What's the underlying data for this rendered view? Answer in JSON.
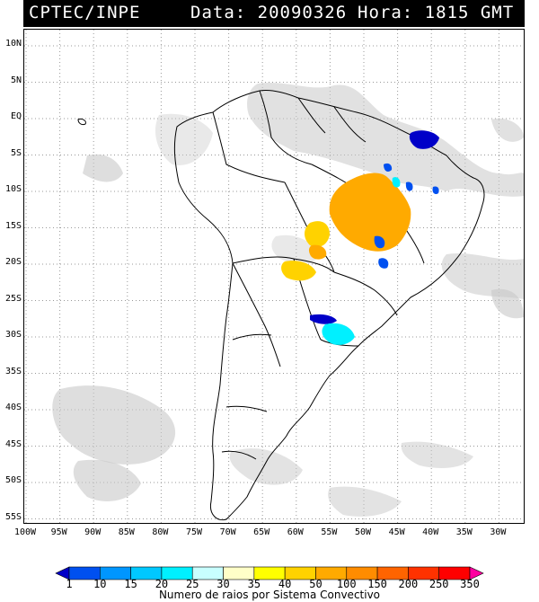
{
  "header": {
    "source": "CPTEC/INPE",
    "date_text": "Data: 20090326",
    "time_text": "Hora: 1815 GMT"
  },
  "map": {
    "lat_labels": [
      "10N",
      "5N",
      "EQ",
      "5S",
      "10S",
      "15S",
      "20S",
      "25S",
      "30S",
      "35S",
      "40S",
      "45S",
      "50S",
      "55S"
    ],
    "lon_labels": [
      "100W",
      "95W",
      "90W",
      "85W",
      "80W",
      "75W",
      "70W",
      "65W",
      "60W",
      "55W",
      "50W",
      "45W",
      "40W",
      "35W",
      "30W"
    ],
    "grid": true,
    "lat_range": [
      -56,
      12
    ],
    "lon_range": [
      -100,
      -27
    ]
  },
  "colorbar": {
    "labels": [
      "1",
      "10",
      "15",
      "20",
      "25",
      "30",
      "35",
      "40",
      "50",
      "100",
      "150",
      "200",
      "250",
      "350"
    ],
    "colors": [
      "#0000c8",
      "#0050f0",
      "#0096ff",
      "#00c8ff",
      "#00f0ff",
      "#c8ffff",
      "#ffffc8",
      "#ffff00",
      "#ffd200",
      "#ffaa00",
      "#ff8c00",
      "#ff6400",
      "#ff3200",
      "#ff0000",
      "#ff00a0"
    ],
    "caption": "Numero de raios por Sistema Convectivo"
  }
}
